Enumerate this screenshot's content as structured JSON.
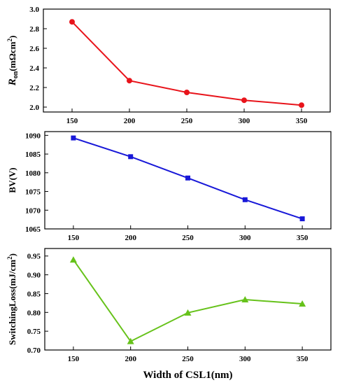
{
  "chart_data": [
    {
      "type": "line",
      "ylabel": "R_on(mΩcm²)",
      "ylabel_parts": {
        "main": "R",
        "sub": "on",
        "rest": "(mΩcm",
        "sup": "2",
        "end": ")"
      },
      "x": [
        150,
        200,
        250,
        300,
        350
      ],
      "series": [
        {
          "values": [
            2.87,
            2.27,
            2.15,
            2.07,
            2.02
          ],
          "color": "#e8141b",
          "marker": "circle"
        }
      ],
      "xlim": [
        125,
        375
      ],
      "ylim": [
        1.95,
        3.0
      ],
      "xticks": [
        150,
        200,
        250,
        300,
        350
      ],
      "yticks": [
        2.0,
        2.2,
        2.4,
        2.6,
        2.8,
        3.0
      ],
      "ytick_labels": [
        "2.0",
        "2.2",
        "2.4",
        "2.6",
        "2.8",
        "3.0"
      ]
    },
    {
      "type": "line",
      "ylabel": "BV(V)",
      "x": [
        150,
        200,
        250,
        300,
        350
      ],
      "series": [
        {
          "values": [
            1089.3,
            1084.3,
            1078.6,
            1072.8,
            1067.7
          ],
          "color": "#1818d8",
          "marker": "square"
        }
      ],
      "xlim": [
        125,
        375
      ],
      "ylim": [
        1065,
        1091
      ],
      "xticks": [
        150,
        200,
        250,
        300,
        350
      ],
      "yticks": [
        1065,
        1070,
        1075,
        1080,
        1085,
        1090
      ],
      "ytick_labels": [
        "1065",
        "1070",
        "1075",
        "1080",
        "1085",
        "1090"
      ]
    },
    {
      "type": "line",
      "ylabel": "SwitchingLoss(mJ/cm²)",
      "ylabel_parts": {
        "main": "SwitchingLoss(mJ/cm",
        "sup": "2",
        "end": ")"
      },
      "xlabel": "Width of CSL1(nm)",
      "x": [
        150,
        200,
        250,
        300,
        350
      ],
      "series": [
        {
          "values": [
            0.94,
            0.723,
            0.799,
            0.834,
            0.823
          ],
          "color": "#66c21a",
          "marker": "triangle"
        }
      ],
      "xlim": [
        125,
        375
      ],
      "ylim": [
        0.7,
        0.97
      ],
      "xticks": [
        150,
        200,
        250,
        300,
        350
      ],
      "yticks": [
        0.7,
        0.75,
        0.8,
        0.85,
        0.9,
        0.95
      ],
      "ytick_labels": [
        "0.70",
        "0.75",
        "0.80",
        "0.85",
        "0.90",
        "0.95"
      ],
      "xtick_labels": [
        "150",
        "200",
        "250",
        "300",
        "350"
      ]
    }
  ]
}
